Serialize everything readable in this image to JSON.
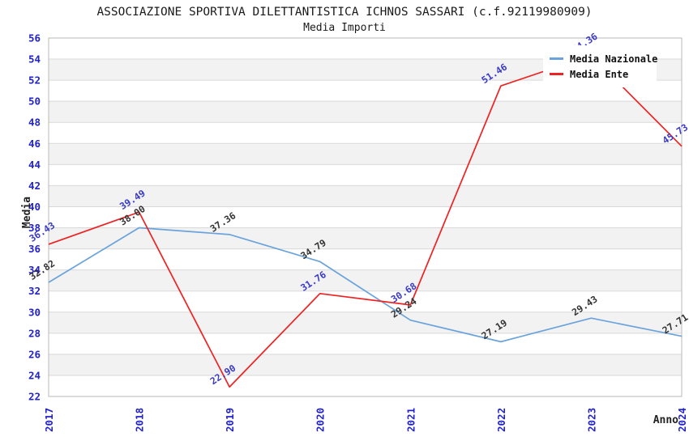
{
  "title": "ASSOCIAZIONE SPORTIVA DILETTANTISTICA ICHNOS SASSARI (c.f.92119980909)",
  "subtitle": "Media Importi",
  "chart_data": {
    "type": "line",
    "x": [
      "2017",
      "2018",
      "2019",
      "2020",
      "2021",
      "2022",
      "2023",
      "2024"
    ],
    "series": [
      {
        "name": "Media Nazionale",
        "color": "#6aa3dc",
        "label_color": "#333333",
        "values": [
          32.82,
          38.0,
          37.36,
          34.79,
          29.24,
          27.19,
          29.43,
          27.71
        ]
      },
      {
        "name": "Media Ente",
        "color": "#ee2222",
        "label_color": "#3a3ac8",
        "values": [
          36.43,
          39.49,
          22.9,
          31.76,
          30.68,
          51.46,
          54.36,
          45.73
        ]
      }
    ],
    "xlabel": "Anno",
    "ylabel": "Media",
    "ylim": [
      22,
      56
    ],
    "ytick_step": 2,
    "grid": "horizontal",
    "legend_position": "top-right",
    "value_label_decimals": 2
  },
  "colors": {
    "tick_label": "#2222cc",
    "grid_line": "#d9d9d9",
    "plot_border": "#b9b9b9",
    "band_fill": "#f2f2f2",
    "band_fill_alt": "#ffffff",
    "legend_bg": "#ffffff"
  }
}
